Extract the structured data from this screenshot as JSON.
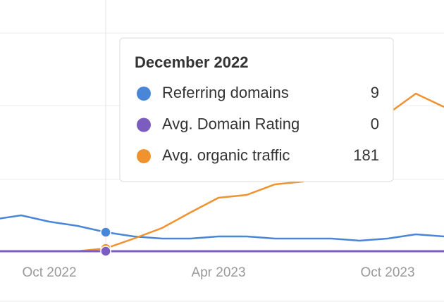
{
  "chart_data": {
    "type": "line",
    "categories": [
      null,
      null,
      "Oct 2022",
      null,
      null,
      null,
      null,
      null,
      "Apr 2023",
      null,
      null,
      null,
      null,
      null,
      "Oct 2023",
      null,
      null
    ],
    "series": [
      {
        "name": "Referring domains",
        "color": "#4a86d8",
        "values": [
          15,
          17,
          14,
          12,
          9,
          7,
          6,
          6,
          7,
          7,
          6,
          6,
          6,
          5,
          6,
          8,
          7
        ]
      },
      {
        "name": "Avg. Domain Rating",
        "color": "#7b5cbf",
        "values": [
          0,
          0,
          0,
          0,
          0,
          0,
          0,
          0,
          0,
          0,
          0,
          0,
          0,
          0,
          0,
          0,
          0
        ]
      },
      {
        "name": "Avg. organic traffic",
        "color": "#f0922e",
        "axis": "y2",
        "values": [
          0,
          0,
          0,
          0,
          181,
          810,
          1485,
          2475,
          3420,
          3600,
          4275,
          4455,
          5715,
          7065,
          8775,
          10080,
          9225
        ]
      }
    ],
    "ylim": [
      0,
      100
    ],
    "y2lim": [
      0,
      13500
    ],
    "tooltip_title": "December 2022"
  }
}
